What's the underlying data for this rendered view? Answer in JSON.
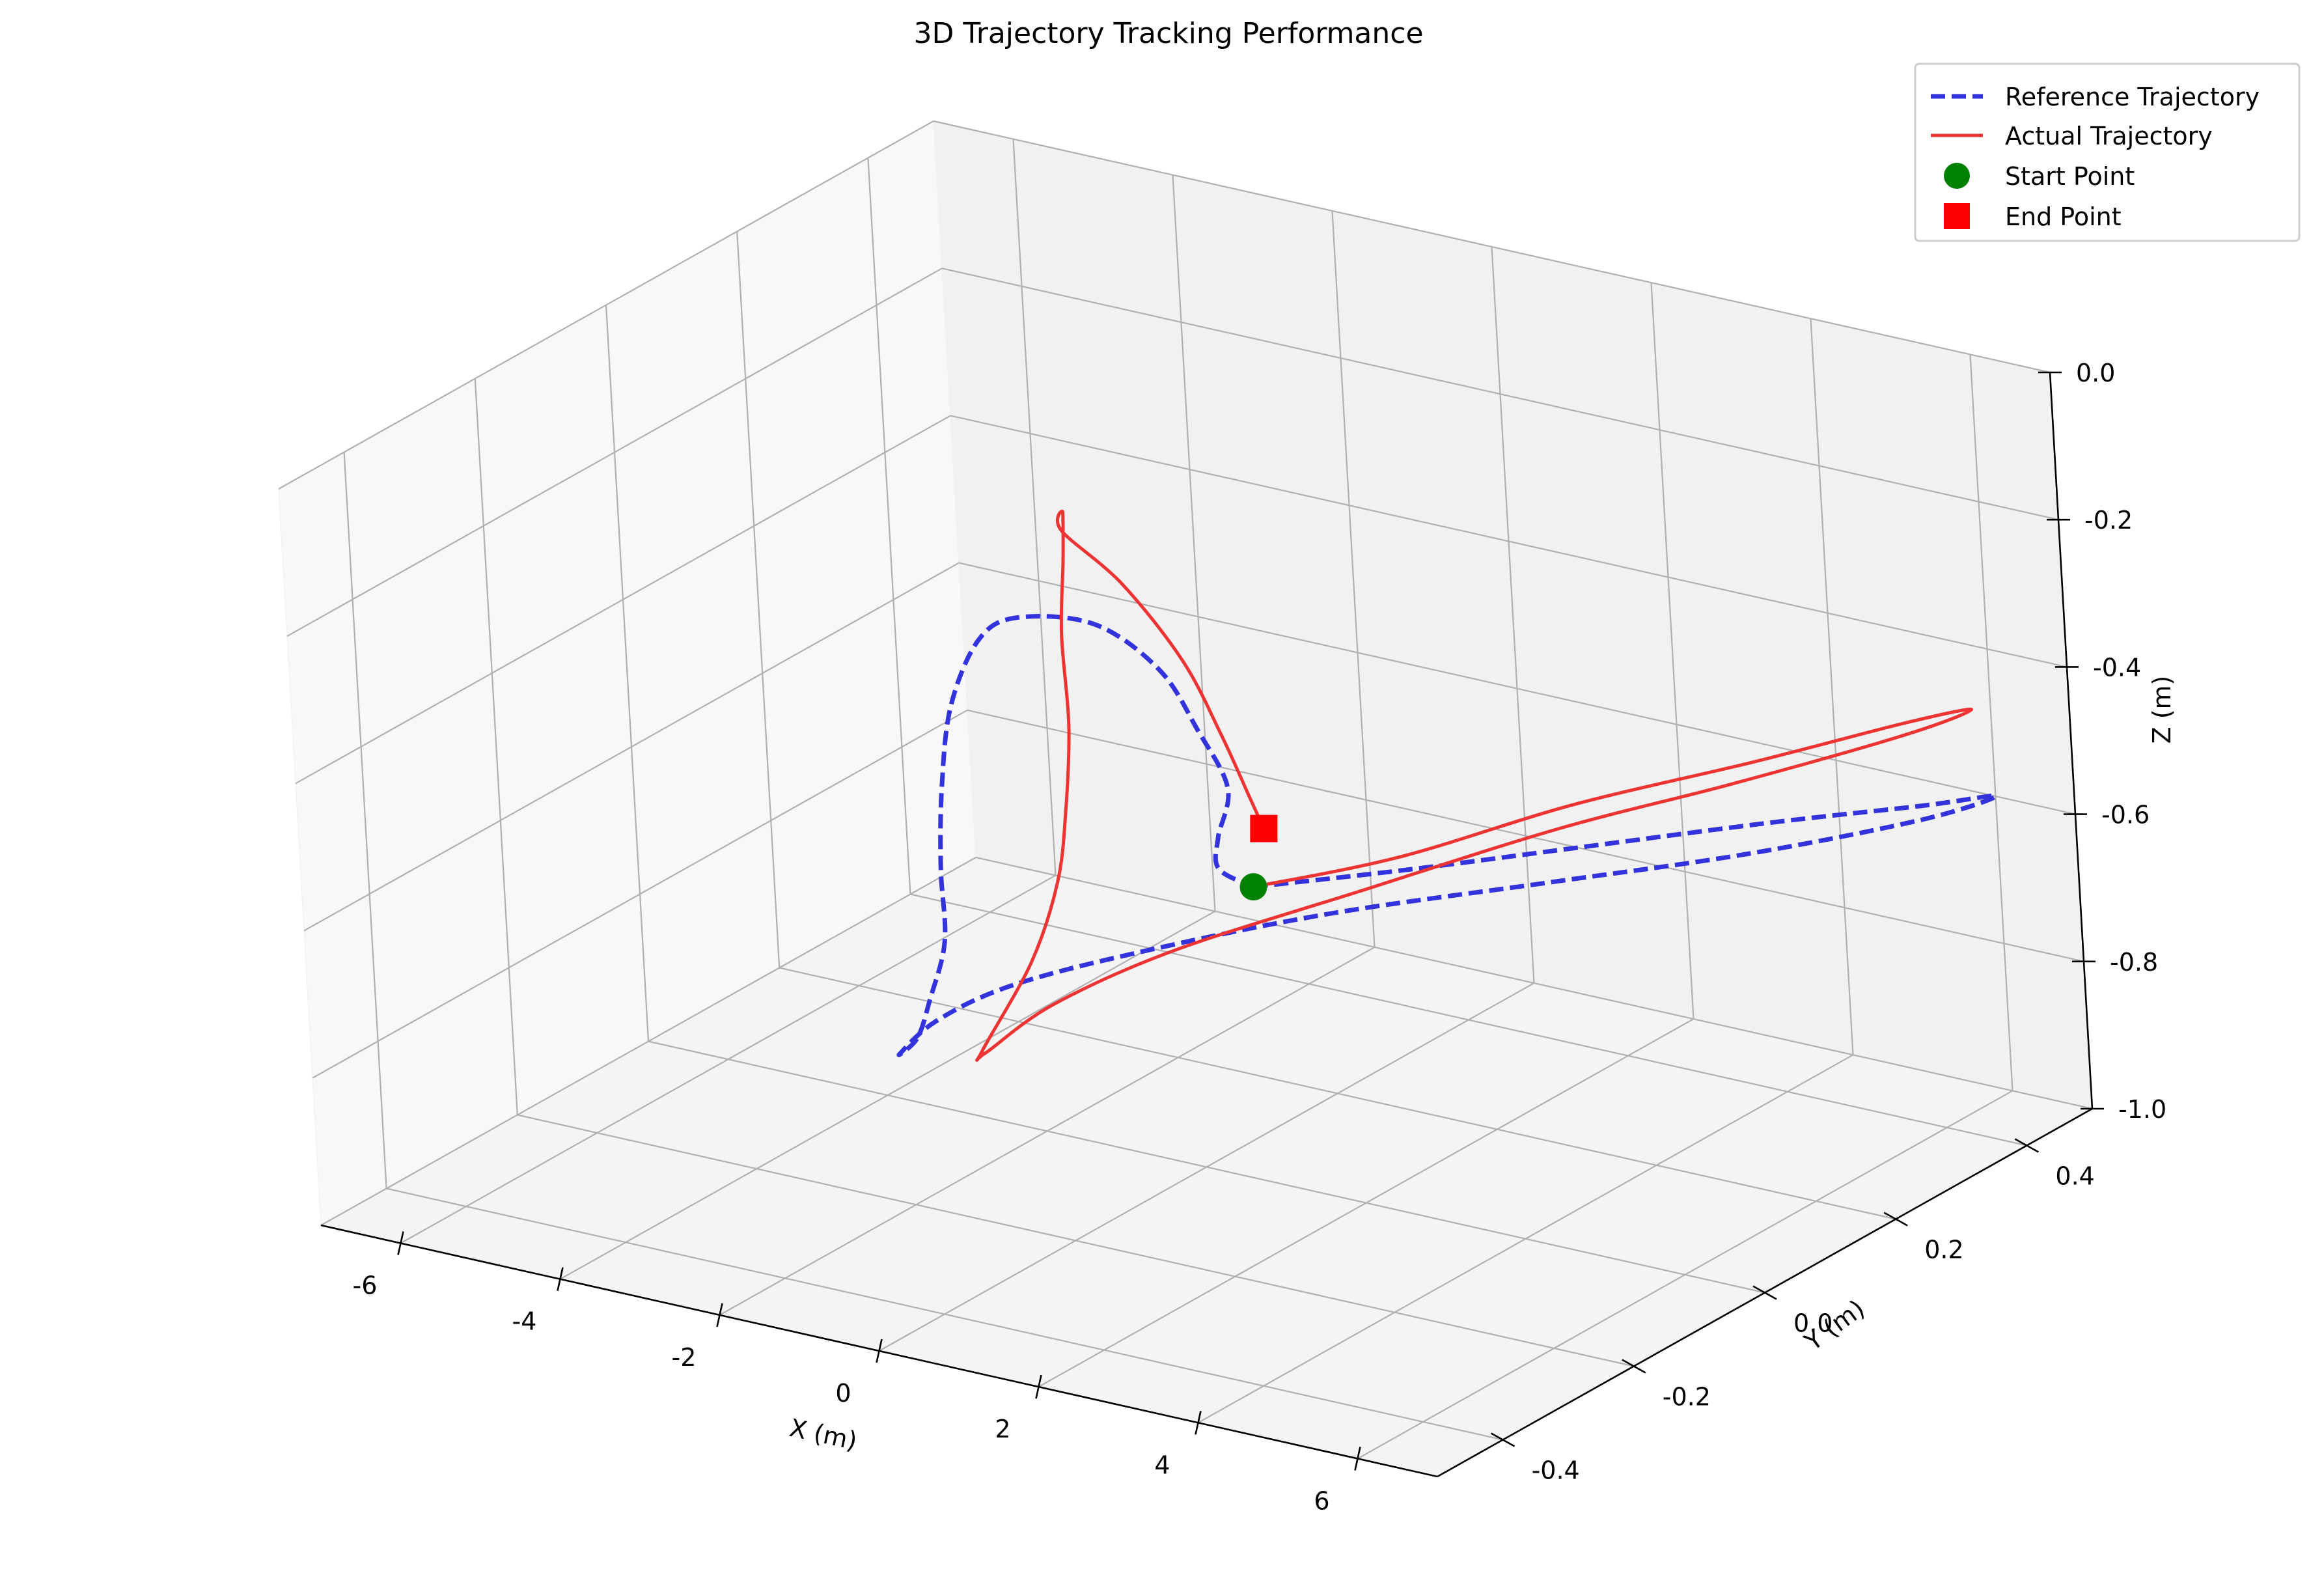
{
  "chart_data": {
    "type": "line3d",
    "title": "3D Trajectory Tracking Performance",
    "xlabel": "X (m)",
    "ylabel": "Y (m)",
    "zlabel": "Z (m)",
    "xlim": [
      -7,
      7
    ],
    "ylim": [
      -0.5,
      0.5
    ],
    "zlim": [
      -1.0,
      0.0
    ],
    "x_ticks": [
      -6,
      -4,
      -2,
      0,
      2,
      4,
      6
    ],
    "y_ticks": [
      -0.4,
      -0.2,
      0.0,
      0.2,
      0.4
    ],
    "z_ticks": [
      -1.0,
      -0.8,
      -0.6,
      -0.4,
      -0.2,
      0.0
    ],
    "x_tick_labels": [
      "-6",
      "-4",
      "-2",
      "0",
      "2",
      "4",
      "6"
    ],
    "y_tick_labels": [
      "-0.4",
      "-0.2",
      "0.0",
      "0.2",
      "0.4"
    ],
    "z_tick_labels": [
      "-1.0",
      "-0.8",
      "-0.6",
      "-0.4",
      "-0.2",
      "0.0"
    ],
    "grid": true,
    "legend_position": "top-right",
    "series": [
      {
        "name": "Reference Trajectory",
        "style": "dashed",
        "color": "#3333dd",
        "x": [
          0.8,
          1.9,
          3.1,
          4.4,
          5.5,
          6.0,
          5.7,
          4.7,
          3.4,
          1.9,
          0.8,
          0.2,
          0.1,
          0.3,
          0.2,
          -0.3,
          -1.1,
          -2.3,
          -3.6,
          -4.8,
          -5.6,
          -5.6,
          -4.8,
          -3.5,
          -2.2,
          -1.0,
          -0.3,
          0.2,
          0.8
        ],
        "y": [
          0.0,
          0.1,
          0.22,
          0.35,
          0.45,
          0.5,
          0.42,
          0.28,
          0.14,
          -0.02,
          -0.18,
          -0.3,
          -0.4,
          -0.48,
          -0.44,
          -0.36,
          -0.24,
          -0.1,
          0.06,
          0.22,
          0.36,
          0.42,
          0.44,
          0.38,
          0.28,
          0.18,
          0.08,
          0.02,
          0.0
        ],
        "z": [
          -0.6,
          -0.6,
          -0.6,
          -0.6,
          -0.6,
          -0.6,
          -0.6,
          -0.6,
          -0.6,
          -0.6,
          -0.6,
          -0.6,
          -0.6,
          -0.6,
          -0.6,
          -0.6,
          -0.6,
          -0.6,
          -0.6,
          -0.6,
          -0.6,
          -0.6,
          -0.6,
          -0.6,
          -0.6,
          -0.6,
          -0.6,
          -0.6,
          -0.6
        ]
      },
      {
        "name": "Actual Trajectory",
        "style": "solid",
        "color": "#ee3333",
        "x": [
          0.8,
          2.0,
          3.2,
          4.5,
          5.6,
          6.1,
          5.9,
          4.9,
          3.7,
          2.3,
          1.1,
          0.4,
          0.2,
          0.5,
          0.5,
          0.2,
          -0.5,
          -1.6,
          -3.0,
          -4.3,
          -5.3,
          -5.5,
          -4.6,
          -3.2,
          -1.9,
          -0.9,
          -0.4
        ],
        "y": [
          0.0,
          0.08,
          0.2,
          0.32,
          0.42,
          0.46,
          0.38,
          0.24,
          0.12,
          -0.02,
          -0.16,
          -0.26,
          -0.34,
          -0.38,
          -0.3,
          -0.22,
          -0.12,
          0.02,
          0.18,
          0.34,
          0.46,
          0.48,
          0.46,
          0.38,
          0.28,
          0.2,
          0.16
        ],
        "z": [
          -0.6,
          -0.57,
          -0.53,
          -0.5,
          -0.47,
          -0.46,
          -0.46,
          -0.48,
          -0.51,
          -0.56,
          -0.6,
          -0.64,
          -0.67,
          -0.64,
          -0.56,
          -0.5,
          -0.47,
          -0.45,
          -0.44,
          -0.45,
          -0.47,
          -0.51,
          -0.55,
          -0.58,
          -0.6,
          -0.62,
          -0.63
        ]
      },
      {
        "name": "Start Point",
        "type": "marker",
        "marker": "circle",
        "color": "#008000",
        "x": [
          0.8
        ],
        "y": [
          0.0
        ],
        "z": [
          -0.6
        ]
      },
      {
        "name": "End Point",
        "type": "marker",
        "marker": "square",
        "color": "#ff0000",
        "x": [
          -0.4
        ],
        "y": [
          0.16
        ],
        "z": [
          -0.63
        ]
      }
    ]
  }
}
